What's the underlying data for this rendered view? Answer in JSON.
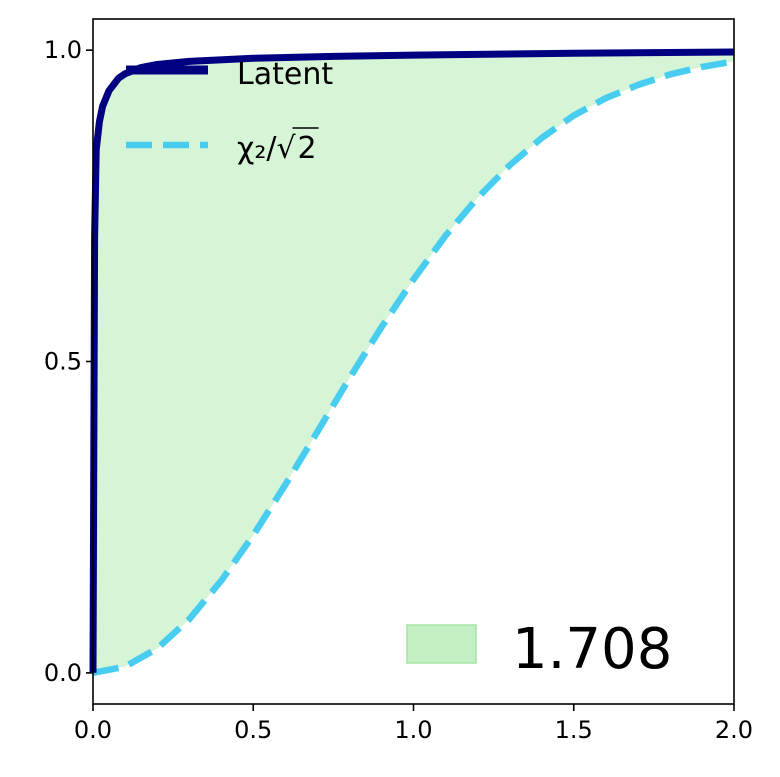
{
  "chart_data": {
    "type": "line",
    "title": "",
    "xlabel": "",
    "ylabel": "",
    "xlim": [
      0.0,
      2.0
    ],
    "ylim": [
      -0.05,
      1.05
    ],
    "x_ticks": [
      "0.0",
      "0.5",
      "1.0",
      "1.5",
      "2.0"
    ],
    "y_ticks": [
      "0.0",
      "0.5",
      "1.0"
    ],
    "grid": false,
    "legend_placement": "top-left",
    "series": [
      {
        "name": "Latent",
        "color": "#000080",
        "style": "solid",
        "x": [
          0,
          0.005,
          0.01,
          0.02,
          0.03,
          0.05,
          0.08,
          0.1,
          0.15,
          0.2,
          0.3,
          0.5,
          0.75,
          1.0,
          1.5,
          2.0
        ],
        "y": [
          0,
          0.7,
          0.84,
          0.885,
          0.91,
          0.935,
          0.955,
          0.962,
          0.972,
          0.977,
          0.982,
          0.987,
          0.99,
          0.992,
          0.995,
          0.997
        ]
      },
      {
        "name": "χ₂/√2",
        "name_display_base": "χ₂/√",
        "name_display_radicand": "2",
        "color": "#48cdf0",
        "style": "dashed",
        "x": [
          0,
          0.1,
          0.2,
          0.3,
          0.4,
          0.5,
          0.6,
          0.7,
          0.8,
          0.9,
          1.0,
          1.1,
          1.2,
          1.3,
          1.4,
          1.5,
          1.6,
          1.7,
          1.8,
          1.9,
          2.0
        ],
        "y": [
          0,
          0.01,
          0.039,
          0.086,
          0.148,
          0.221,
          0.302,
          0.387,
          0.473,
          0.555,
          0.632,
          0.702,
          0.763,
          0.815,
          0.859,
          0.895,
          0.923,
          0.944,
          0.961,
          0.973,
          0.982
        ]
      }
    ],
    "fill_between": {
      "between": [
        "Latent",
        "χ₂/√2"
      ],
      "color": "#d6f4d6",
      "legend_color": "#c3efc3",
      "legend_label": "1.708",
      "legend_placement": "bottom-right"
    }
  }
}
